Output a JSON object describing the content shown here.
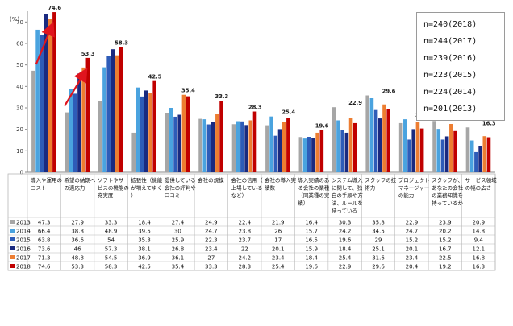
{
  "chart_data": {
    "type": "bar",
    "ylabel": "(%)",
    "ylim": [
      0,
      75
    ],
    "yticks": [
      0,
      10,
      20,
      30,
      40,
      50,
      60,
      70
    ],
    "grid": false,
    "categories": [
      "導入や運用のコスト",
      "希望の納期への適応力",
      "ソフトやサービスの機能の充実度",
      "拡張性（機能が増えてゆく）",
      "提供している会社の評判や口コミ",
      "会社の規模",
      "会社の信用（上場しているなど）",
      "会社の導入実績数",
      "導入実績のある会社の業種（同業種の実績）",
      "システム導入に関して、独自の手順や方法、ルールを持っている",
      "スタッフの技術力",
      "プロジェクトマネージャーの能力",
      "スタッフが、あなたの会社の業務知識を持っているか",
      "サービス領域の幅の広さ"
    ],
    "series": [
      {
        "name": "2013",
        "color": "#a6a6a6",
        "values": [
          47.3,
          27.9,
          33.3,
          18.4,
          27.4,
          24.9,
          22.4,
          21.9,
          16.4,
          30.3,
          35.8,
          22.9,
          23.9,
          20.9
        ]
      },
      {
        "name": "2014",
        "color": "#4aa3df",
        "values": [
          66.4,
          38.8,
          48.9,
          39.5,
          30.0,
          24.7,
          23.8,
          26.0,
          15.7,
          24.2,
          34.5,
          24.7,
          20.2,
          14.8
        ]
      },
      {
        "name": "2015",
        "color": "#2e5cb8",
        "values": [
          63.8,
          36.6,
          54.0,
          35.3,
          25.9,
          22.3,
          23.7,
          17.0,
          16.5,
          19.6,
          29.0,
          15.2,
          15.2,
          9.4
        ]
      },
      {
        "name": "2016",
        "color": "#1a2a80",
        "values": [
          73.6,
          46.0,
          57.3,
          38.1,
          26.8,
          23.4,
          22.0,
          20.1,
          15.9,
          18.4,
          25.1,
          20.1,
          16.7,
          12.1
        ]
      },
      {
        "name": "2017",
        "color": "#ed7d31",
        "values": [
          71.3,
          48.8,
          54.5,
          36.9,
          36.1,
          27.0,
          24.2,
          23.4,
          18.4,
          25.4,
          31.6,
          23.4,
          22.5,
          16.8
        ]
      },
      {
        "name": "2018",
        "color": "#c00000",
        "values": [
          74.6,
          53.3,
          58.3,
          42.5,
          35.4,
          33.3,
          28.3,
          25.4,
          19.6,
          22.9,
          29.6,
          20.4,
          19.2,
          16.3
        ]
      }
    ],
    "data_labels_series": "2018",
    "legend": {
      "placement": "top-right",
      "entries": [
        "n=240(2018)",
        "n=244(2017)",
        "n=239(2016)",
        "n=223(2015)",
        "n=224(2014)",
        "n=201(2013)"
      ]
    },
    "annotations": [
      "trend-arrow",
      "trend-arrow"
    ]
  }
}
